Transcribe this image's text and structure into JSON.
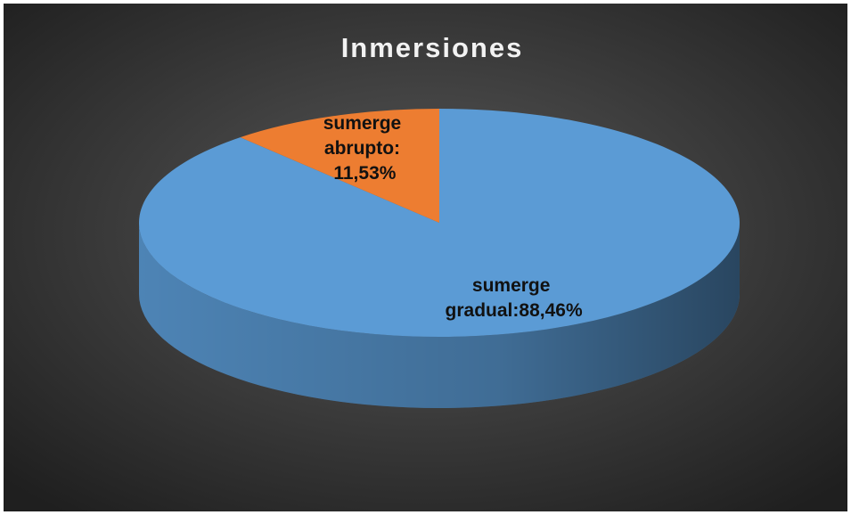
{
  "chart_data": {
    "type": "pie",
    "title": "Inmersiones",
    "values": [
      88.46,
      11.53
    ],
    "value_labels": [
      "sumerge gradual:88,46%",
      "sumerge abrupto: 11,53%"
    ],
    "colors": [
      "#5b9bd5",
      "#ed7d31"
    ]
  }
}
